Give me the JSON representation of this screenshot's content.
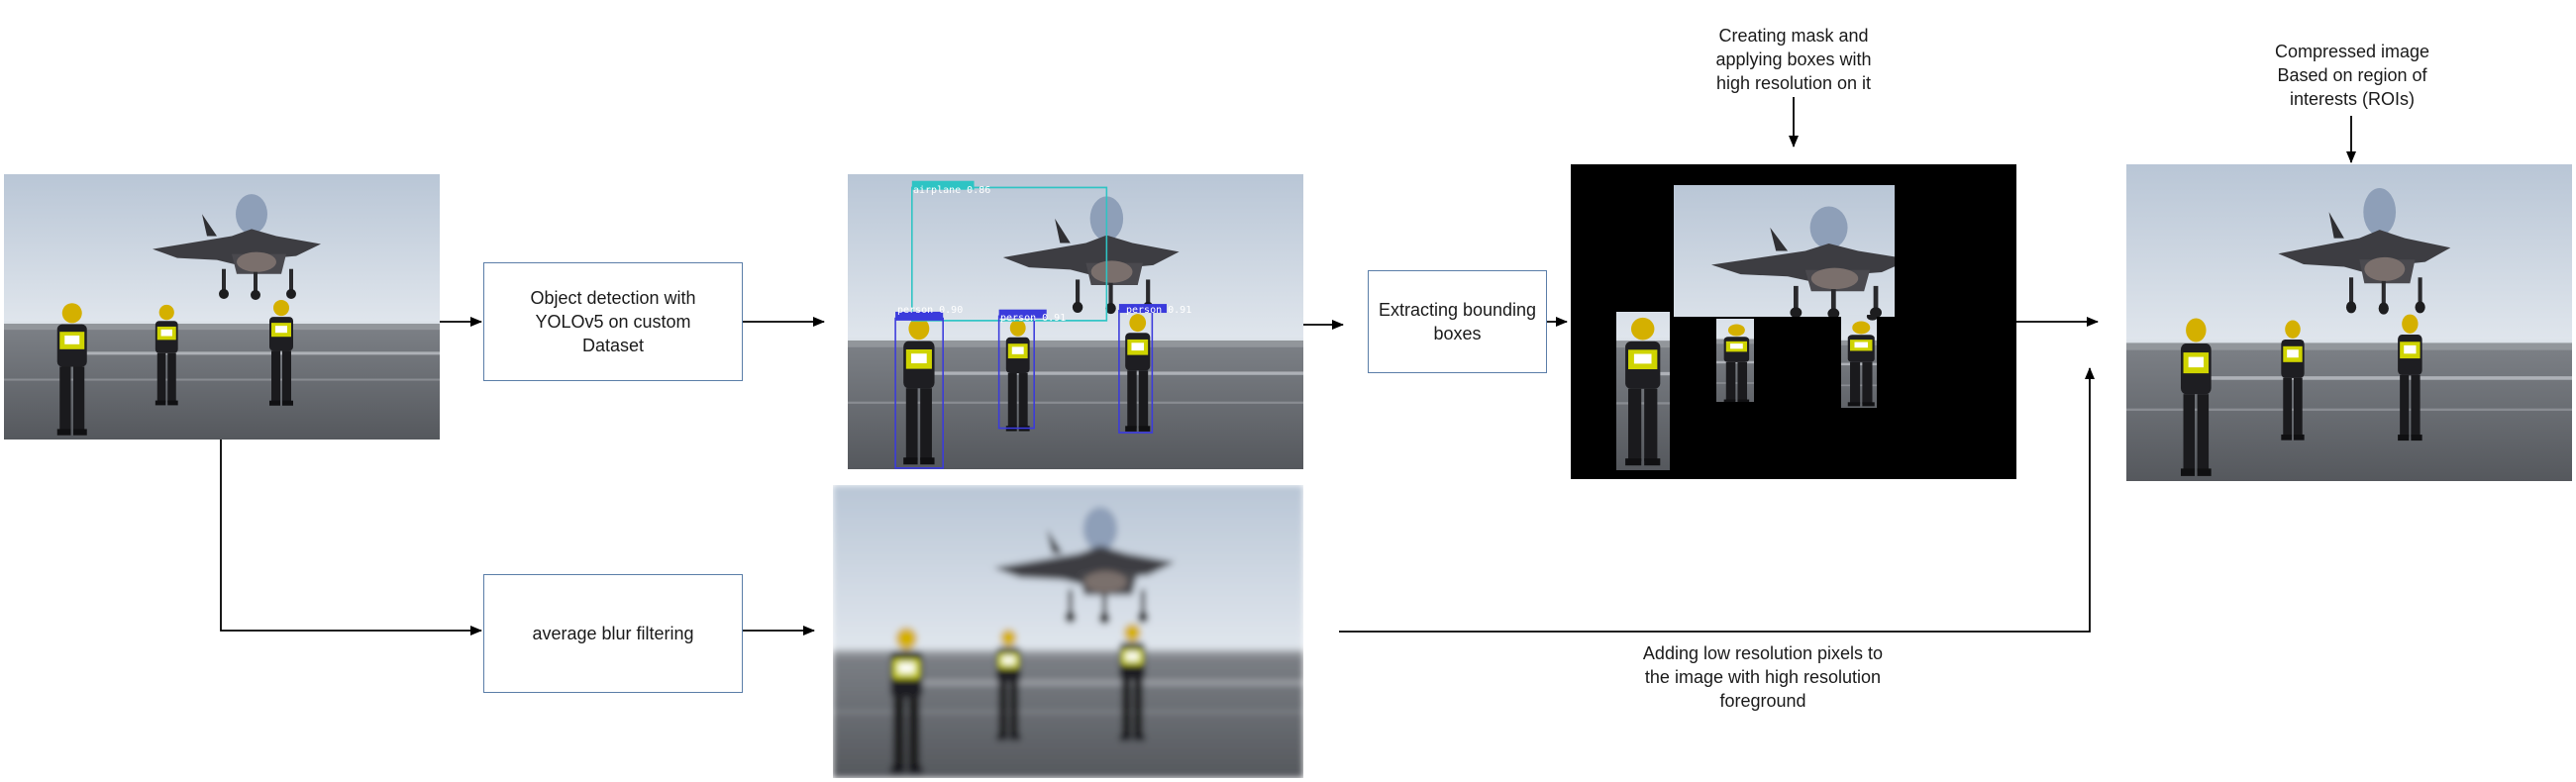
{
  "steps": {
    "detection": "Object detection with\nYOLOv5 on custom\nDataset",
    "extract": "Extracting bounding\nboxes",
    "blur": "average blur filtering"
  },
  "notes": {
    "mask": "Creating mask and\napplying boxes with\nhigh resolution on it",
    "compressed": "Compressed image\nBased on region of\ninterests (ROIs)",
    "merge": "Adding low resolution pixels to\nthe image with high resolution\nforeground"
  },
  "detections": [
    {
      "label": "airplane 0.86"
    },
    {
      "label": "person 0.90"
    },
    {
      "label": "person 0.91"
    },
    {
      "label": "person 0.91"
    }
  ],
  "colors": {
    "box_border": "#5b7ea8",
    "airplane_box": "#2ec4c4",
    "person_box": "#3b3bdc",
    "arrow": "#000000"
  }
}
